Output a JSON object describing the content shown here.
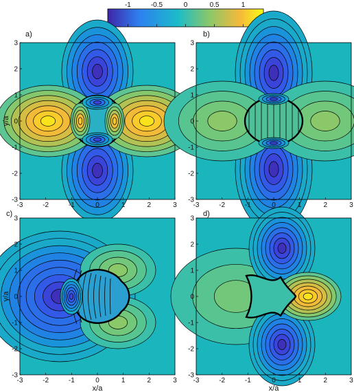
{
  "colorbar": {
    "ticks": [
      "-1",
      "-0.5",
      "0",
      "0.5",
      "1"
    ],
    "values": [
      -1,
      -0.5,
      0,
      0.5,
      1
    ],
    "range": [
      -1.35,
      1.35
    ],
    "colormap": "parula",
    "colors": [
      "#3e26a8",
      "#2e7ff0",
      "#1bbbc9",
      "#89c86a",
      "#f6b93a",
      "#f9fb15"
    ]
  },
  "panels": [
    {
      "label": "a)",
      "xlabel": "",
      "ylabel": "y/a",
      "contour_lines": 14,
      "boundary_color": "#000000"
    },
    {
      "label": "b)",
      "xlabel": "",
      "ylabel": "",
      "contour_lines": 14,
      "boundary_color": "#000000"
    },
    {
      "label": "c)",
      "xlabel": "x/a",
      "ylabel": "y/a",
      "contour_lines": 14,
      "boundary_color": "#000000"
    },
    {
      "label": "d)",
      "xlabel": "x/a",
      "ylabel": "",
      "contour_lines": 14,
      "boundary_color": "#000000"
    }
  ],
  "axes": {
    "xticks": [
      "-3",
      "-2",
      "-1",
      "0",
      "1",
      "2",
      "3"
    ],
    "yticks": [
      "3",
      "2",
      "1",
      "0",
      "-1",
      "-2",
      "-3"
    ]
  },
  "chart_data": [
    {
      "type": "heatmap",
      "title": "a)",
      "xlabel": "",
      "ylabel": "y/a",
      "xlim": [
        -3,
        3
      ],
      "ylim": [
        -3,
        3
      ],
      "xticks": [
        -3,
        -2,
        -1,
        0,
        1,
        2,
        3
      ],
      "yticks": [
        -3,
        -2,
        -1,
        0,
        1,
        2,
        3
      ],
      "description_values": {
        "max_near": [
          -0.85,
          0
        ],
        "max_value": 1.0,
        "min_near": [
          0.2,
          0.9
        ],
        "min_value": -1.0
      }
    },
    {
      "type": "heatmap",
      "title": "b)",
      "xlabel": "",
      "ylabel": "",
      "xlim": [
        -3,
        3
      ],
      "ylim": [
        -3,
        3
      ],
      "xticks": [
        -3,
        -2,
        -1,
        0,
        1,
        2,
        3
      ],
      "yticks": [
        -3,
        -2,
        -1,
        0,
        1,
        2,
        3
      ]
    },
    {
      "type": "heatmap",
      "title": "c)",
      "xlabel": "x/a",
      "ylabel": "y/a",
      "xlim": [
        -3,
        3
      ],
      "ylim": [
        -3,
        3
      ],
      "xticks": [
        -3,
        -2,
        -1,
        0,
        1,
        2,
        3
      ],
      "yticks": [
        -3,
        -2,
        -1,
        0,
        1,
        2,
        3
      ]
    },
    {
      "type": "heatmap",
      "title": "d)",
      "xlabel": "x/a",
      "ylabel": "",
      "xlim": [
        -3,
        3
      ],
      "ylim": [
        -3,
        3
      ],
      "xticks": [
        -3,
        -2,
        -1,
        0,
        1,
        2,
        3
      ],
      "yticks": [
        -3,
        -2,
        -1,
        0,
        1,
        2,
        3
      ]
    }
  ]
}
